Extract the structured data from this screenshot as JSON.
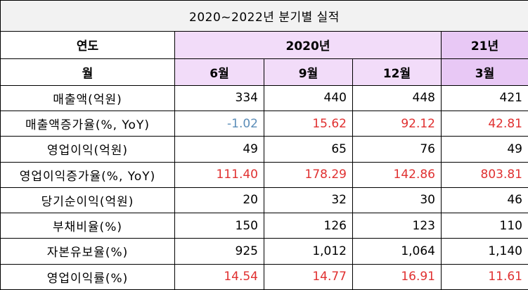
{
  "title": "2020~2022년 분기별 실적",
  "header": {
    "year_label": "연도",
    "year_2020": "2020년",
    "year_21": "21년",
    "month_label": "월",
    "months": [
      "6월",
      "9월",
      "12월",
      "3월"
    ]
  },
  "rows": [
    {
      "label": "매출액(억원)",
      "values": [
        "334",
        "440",
        "448",
        "421"
      ],
      "colors": [
        "",
        "",
        "",
        ""
      ]
    },
    {
      "label": "매출액증가율(%, YoY)",
      "values": [
        "-1.02",
        "15.62",
        "92.12",
        "42.81"
      ],
      "colors": [
        "neg",
        "pos-red",
        "pos-red",
        "pos-red"
      ]
    },
    {
      "label": "영업이익(억원)",
      "values": [
        "49",
        "65",
        "76",
        "49"
      ],
      "colors": [
        "",
        "",
        "",
        ""
      ]
    },
    {
      "label": "영업이익증가율(%, YoY)",
      "values": [
        "111.40",
        "178.29",
        "142.86",
        "803.81"
      ],
      "colors": [
        "pos-red",
        "pos-red",
        "pos-red",
        "pos-red"
      ]
    },
    {
      "label": "당기순이익(억원)",
      "values": [
        "20",
        "32",
        "30",
        "46"
      ],
      "colors": [
        "",
        "",
        "",
        ""
      ]
    },
    {
      "label": "부채비율(%)",
      "values": [
        "150",
        "126",
        "123",
        "110"
      ],
      "colors": [
        "",
        "",
        "",
        ""
      ]
    },
    {
      "label": "자본유보율(%)",
      "values": [
        "925",
        "1,012",
        "1,064",
        "1,140"
      ],
      "colors": [
        "",
        "",
        "",
        ""
      ]
    },
    {
      "label": "영업이익률(%)",
      "values": [
        "14.54",
        "14.77",
        "16.91",
        "11.61"
      ],
      "colors": [
        "pos-red",
        "pos-red",
        "pos-red",
        "pos-red"
      ]
    }
  ],
  "colors": {
    "header_purple": "#f2dcf9",
    "header_purple_dark": "#e8c8f5",
    "title_bg": "#f2f2f2",
    "negative": "#5b8db8",
    "positive": "#e03030"
  }
}
